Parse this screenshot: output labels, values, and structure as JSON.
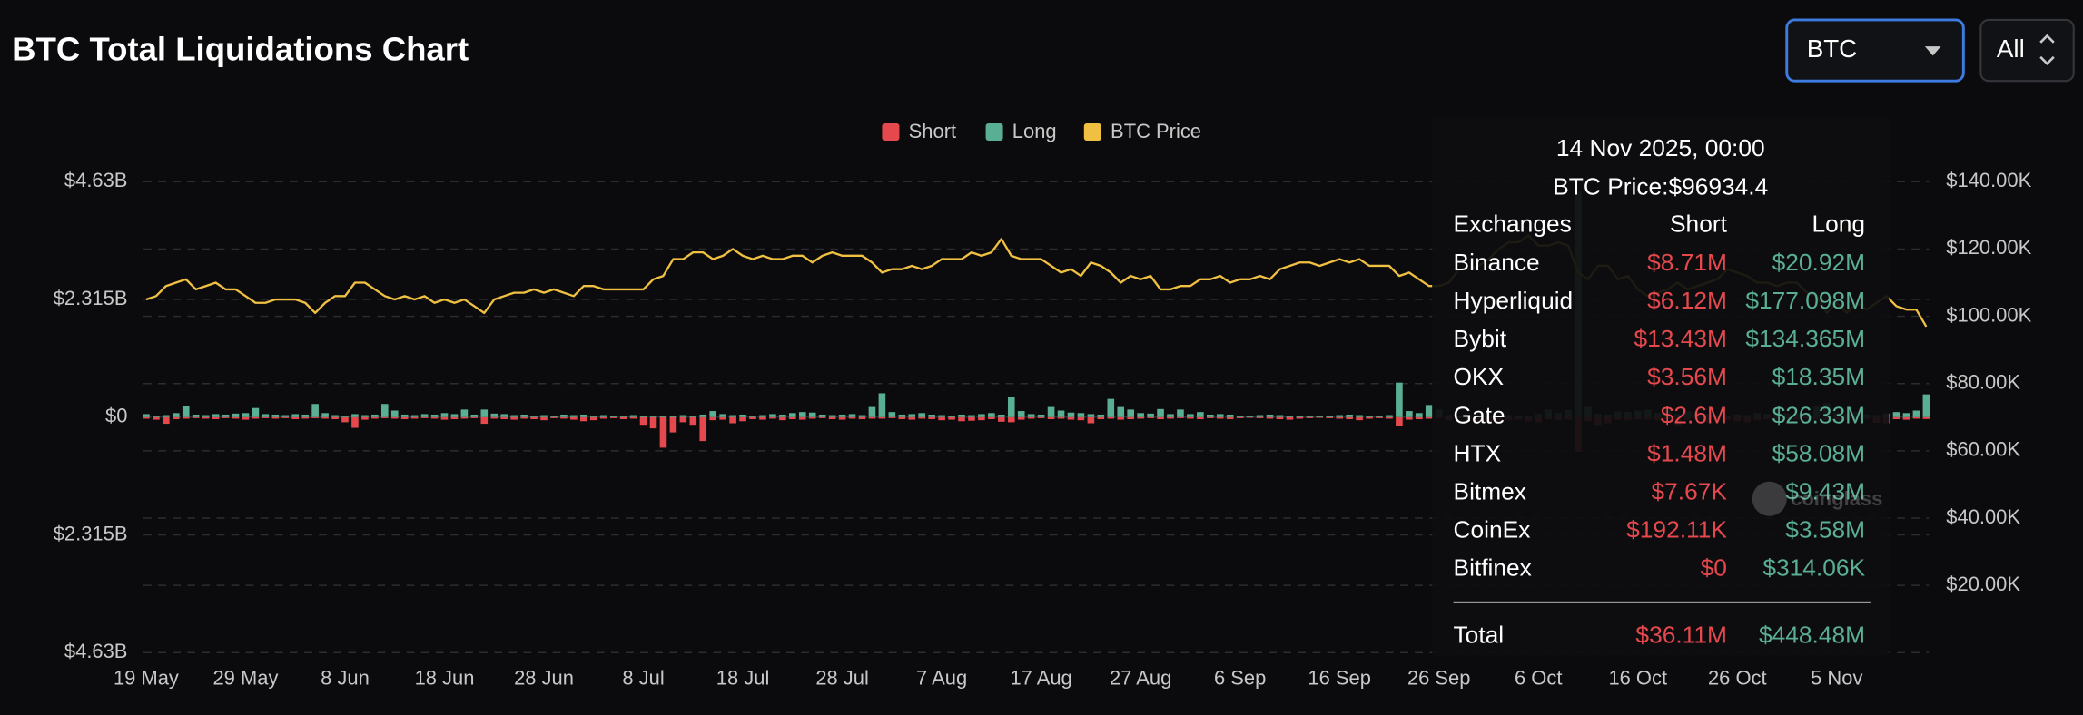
{
  "header": {
    "title": "BTC Total Liquidations Chart",
    "symbol_select": "BTC",
    "range_select": "All"
  },
  "chart_data": {
    "type": "combo",
    "categories": [
      "19 May",
      null,
      null,
      null,
      null,
      null,
      null,
      null,
      null,
      null,
      "29 May",
      null,
      null,
      null,
      null,
      null,
      null,
      null,
      null,
      null,
      "8 Jun",
      null,
      null,
      null,
      null,
      null,
      null,
      null,
      null,
      null,
      "18 Jun",
      null,
      null,
      null,
      null,
      null,
      null,
      null,
      null,
      null,
      "28 Jun",
      null,
      null,
      null,
      null,
      null,
      null,
      null,
      null,
      null,
      "8 Jul",
      null,
      null,
      null,
      null,
      null,
      null,
      null,
      null,
      null,
      "18 Jul",
      null,
      null,
      null,
      null,
      null,
      null,
      null,
      null,
      null,
      "28 Jul",
      null,
      null,
      null,
      null,
      null,
      null,
      null,
      null,
      null,
      "7 Aug",
      null,
      null,
      null,
      null,
      null,
      null,
      null,
      null,
      null,
      "17 Aug",
      null,
      null,
      null,
      null,
      null,
      null,
      null,
      null,
      null,
      "27 Aug",
      null,
      null,
      null,
      null,
      null,
      null,
      null,
      null,
      null,
      "6 Sep",
      null,
      null,
      null,
      null,
      null,
      null,
      null,
      null,
      null,
      "16 Sep",
      null,
      null,
      null,
      null,
      null,
      null,
      null,
      null,
      null,
      "26 Sep",
      null,
      null,
      null,
      null,
      null,
      null,
      null,
      null,
      null,
      "6 Oct",
      null,
      null,
      null,
      null,
      null,
      null,
      null,
      null,
      null,
      "16 Oct",
      null,
      null,
      null,
      null,
      null,
      null,
      null,
      null,
      null,
      "26 Oct",
      null,
      null,
      null,
      null,
      null,
      null,
      null,
      null,
      null,
      "5 Nov",
      null,
      null,
      null,
      null,
      null,
      null,
      null,
      null,
      null
    ],
    "series": [
      {
        "name": "Short",
        "type": "bar",
        "color": "#e5484d",
        "values": [
          -30000000.0,
          -50000000.0,
          -130000000.0,
          -40000000.0,
          -30000000.0,
          -20000000.0,
          -30000000.0,
          -40000000.0,
          -20000000.0,
          -30000000.0,
          -50000000.0,
          -30000000.0,
          -20000000.0,
          -30000000.0,
          -20000000.0,
          -40000000.0,
          -30000000.0,
          -20000000.0,
          -30000000.0,
          -40000000.0,
          -100000000.0,
          -210000000.0,
          -50000000.0,
          -30000000.0,
          -20000000.0,
          -30000000.0,
          -40000000.0,
          -30000000.0,
          -20000000.0,
          -30000000.0,
          -50000000.0,
          -40000000.0,
          -30000000.0,
          -20000000.0,
          -130000000.0,
          -30000000.0,
          -40000000.0,
          -50000000.0,
          -30000000.0,
          -40000000.0,
          -60000000.0,
          -20000000.0,
          -30000000.0,
          -50000000.0,
          -80000000.0,
          -60000000.0,
          -30000000.0,
          -20000000.0,
          -40000000.0,
          -30000000.0,
          -150000000.0,
          -220000000.0,
          -600000000.0,
          -300000000.0,
          -100000000.0,
          -150000000.0,
          -470000000.0,
          -60000000.0,
          -50000000.0,
          -120000000.0,
          -80000000.0,
          -40000000.0,
          -50000000.0,
          -30000000.0,
          -60000000.0,
          -40000000.0,
          -50000000.0,
          -30000000.0,
          -20000000.0,
          -40000000.0,
          -50000000.0,
          -30000000.0,
          -40000000.0,
          -30000000.0,
          -30000000.0,
          -20000000.0,
          -40000000.0,
          -50000000.0,
          -30000000.0,
          -40000000.0,
          -60000000.0,
          -50000000.0,
          -80000000.0,
          -70000000.0,
          -60000000.0,
          -40000000.0,
          -90000000.0,
          -100000000.0,
          -50000000.0,
          -30000000.0,
          -20000000.0,
          -40000000.0,
          -30000000.0,
          -50000000.0,
          -60000000.0,
          -120000000.0,
          -40000000.0,
          -30000000.0,
          -50000000.0,
          -40000000.0,
          -30000000.0,
          -20000000.0,
          -40000000.0,
          -30000000.0,
          -20000000.0,
          -30000000.0,
          -40000000.0,
          -20000000.0,
          -30000000.0,
          -40000000.0,
          -20000000.0,
          -10000000.0,
          -20000000.0,
          -30000000.0,
          -40000000.0,
          -50000000.0,
          -30000000.0,
          -20000000.0,
          -10000000.0,
          -20000000.0,
          -30000000.0,
          -40000000.0,
          -60000000.0,
          -30000000.0,
          -20000000.0,
          -30000000.0,
          -180000000.0,
          -50000000.0,
          -40000000.0,
          -30000000.0,
          -20000000.0,
          -60000000.0,
          -20000000.0,
          -50000000.0,
          -80000000.0,
          -100000000.0,
          -130000000.0,
          -60000000.0,
          -50000000.0,
          -80000000.0,
          -100000000.0,
          -40000000.0,
          -60000000.0,
          -50000000.0,
          -680000000.0,
          -80000000.0,
          -150000000.0,
          -120000000.0,
          -50000000.0,
          -60000000.0,
          -40000000.0,
          -50000000.0,
          -60000000.0,
          -40000000.0,
          -160000000.0,
          -50000000.0,
          -40000000.0,
          -110000000.0,
          -60000000.0,
          -50000000.0,
          -80000000.0,
          -100000000.0,
          -60000000.0,
          -40000000.0,
          -50000000.0,
          -30000000.0,
          -50000000.0,
          -30000000.0,
          -40000000.0,
          -50000000.0,
          -60000000.0,
          -40000000.0,
          -50000000.0,
          -30000000.0,
          -110000000.0,
          -120000000.0,
          -40000000.0,
          -50000000.0,
          -30000000.0,
          -36110000.0
        ]
      },
      {
        "name": "Long",
        "type": "bar",
        "color": "#5aae93",
        "values": [
          60000000.0,
          30000000.0,
          40000000.0,
          80000000.0,
          220000000.0,
          50000000.0,
          40000000.0,
          60000000.0,
          50000000.0,
          70000000.0,
          80000000.0,
          180000000.0,
          60000000.0,
          50000000.0,
          40000000.0,
          60000000.0,
          50000000.0,
          260000000.0,
          80000000.0,
          40000000.0,
          30000000.0,
          60000000.0,
          40000000.0,
          50000000.0,
          260000000.0,
          130000000.0,
          50000000.0,
          40000000.0,
          60000000.0,
          50000000.0,
          80000000.0,
          60000000.0,
          150000000.0,
          50000000.0,
          150000000.0,
          70000000.0,
          60000000.0,
          40000000.0,
          50000000.0,
          30000000.0,
          40000000.0,
          30000000.0,
          50000000.0,
          40000000.0,
          50000000.0,
          30000000.0,
          40000000.0,
          30000000.0,
          20000000.0,
          40000000.0,
          30000000.0,
          20000000.0,
          20000000.0,
          30000000.0,
          40000000.0,
          30000000.0,
          50000000.0,
          120000000.0,
          60000000.0,
          40000000.0,
          50000000.0,
          30000000.0,
          40000000.0,
          60000000.0,
          50000000.0,
          80000000.0,
          100000000.0,
          90000000.0,
          50000000.0,
          40000000.0,
          50000000.0,
          60000000.0,
          40000000.0,
          200000000.0,
          470000000.0,
          100000000.0,
          50000000.0,
          60000000.0,
          80000000.0,
          50000000.0,
          40000000.0,
          30000000.0,
          50000000.0,
          40000000.0,
          60000000.0,
          80000000.0,
          50000000.0,
          390000000.0,
          120000000.0,
          60000000.0,
          50000000.0,
          200000000.0,
          130000000.0,
          90000000.0,
          80000000.0,
          60000000.0,
          50000000.0,
          360000000.0,
          200000000.0,
          150000000.0,
          80000000.0,
          70000000.0,
          160000000.0,
          60000000.0,
          150000000.0,
          60000000.0,
          100000000.0,
          50000000.0,
          60000000.0,
          50000000.0,
          30000000.0,
          20000000.0,
          40000000.0,
          50000000.0,
          40000000.0,
          30000000.0,
          30000000.0,
          20000000.0,
          20000000.0,
          30000000.0,
          40000000.0,
          50000000.0,
          40000000.0,
          30000000.0,
          30000000.0,
          40000000.0,
          680000000.0,
          120000000.0,
          80000000.0,
          240000000.0,
          150000000.0,
          40000000.0,
          30000000.0,
          50000000.0,
          60000000.0,
          30000000.0,
          50000000.0,
          40000000.0,
          30000000.0,
          20000000.0,
          60000000.0,
          150000000.0,
          80000000.0,
          140000000.0,
          4450000000.0,
          200000000.0,
          60000000.0,
          50000000.0,
          110000000.0,
          100000000.0,
          130000000.0,
          150000000.0,
          80000000.0,
          150000000.0,
          60000000.0,
          110000000.0,
          100000000.0,
          60000000.0,
          40000000.0,
          30000000.0,
          50000000.0,
          40000000.0,
          80000000.0,
          60000000.0,
          180000000.0,
          70000000.0,
          60000000.0,
          80000000.0,
          210000000.0,
          270000000.0,
          90000000.0,
          60000000.0,
          100000000.0,
          50000000.0,
          40000000.0,
          70000000.0,
          100000000.0,
          80000000.0,
          130000000.0,
          448480000.0
        ]
      },
      {
        "name": "BTC Price",
        "type": "line",
        "axis": "y2",
        "color": "#f0c043",
        "values": [
          105000.0,
          106000.0,
          109000.0,
          110000.0,
          111000.0,
          108000.0,
          109000.0,
          110000.0,
          108000.0,
          108000.0,
          106000.0,
          104000.0,
          104000.0,
          105000.0,
          105000.0,
          105000.0,
          104000.0,
          101000.0,
          104000.0,
          106000.0,
          106000.0,
          110000.0,
          110000.0,
          108000.0,
          106000.0,
          105000.0,
          106000.0,
          105000.0,
          106000.0,
          104000.0,
          105000.0,
          104000.0,
          105000.0,
          103000.0,
          101000.0,
          105000.0,
          106000.0,
          107000.0,
          107000.0,
          108000.0,
          107000.0,
          108000.0,
          107000.0,
          106000.0,
          109000.0,
          109000.0,
          108000.0,
          108000.0,
          108000.0,
          108000.0,
          108000.0,
          111000.0,
          112000.0,
          117000.0,
          117000.0,
          119000.0,
          119000.0,
          117000.0,
          118000.0,
          120000.0,
          118000.0,
          117000.0,
          118000.0,
          117000.0,
          117000.0,
          118000.0,
          118000.0,
          116000.0,
          118000.0,
          119000.0,
          118000.0,
          118000.0,
          118000.0,
          116000.0,
          113000.0,
          114000.0,
          114000.0,
          115000.0,
          114000.0,
          115000.0,
          117000.0,
          117000.0,
          117000.0,
          119000.0,
          118000.0,
          119000.0,
          123000.0,
          118000.0,
          117000.0,
          117000.0,
          117000.0,
          115000.0,
          113000.0,
          114000.0,
          112000.0,
          116000.0,
          115000.0,
          113000.0,
          110000.0,
          112000.0,
          111000.0,
          112000.0,
          108000.0,
          108000.0,
          109000.0,
          109000.0,
          111000.0,
          111000.0,
          112000.0,
          110000.0,
          111000.0,
          111000.0,
          112000.0,
          111000.0,
          114000.0,
          115000.0,
          116000.0,
          116000.0,
          115000.0,
          116000.0,
          117000.0,
          116000.0,
          117000.0,
          115000.0,
          115000.0,
          115000.0,
          112000.0,
          113000.0,
          111000.0,
          109000.0,
          109000.0,
          110000.0,
          114000.0,
          114000.0,
          115000.0,
          117000.0,
          120000.0,
          122000.0,
          122000.0,
          124000.0,
          121000.0,
          121000.0,
          122000.0,
          121000.0,
          113000.0,
          111000.0,
          115000.0,
          115000.0,
          111000.0,
          112000.0,
          108000.0,
          106000.0,
          107000.0,
          108000.0,
          110000.0,
          108000.0,
          109000.0,
          110000.0,
          111000.0,
          114000.0,
          113000.0,
          112000.0,
          110000.0,
          110000.0,
          109000.0,
          110000.0,
          110000.0,
          107000.0,
          106000.0,
          101000.0,
          104000.0,
          101000.0,
          104000.0,
          102000.0,
          104000.0,
          106000.0,
          103000.0,
          102000.0,
          102000.0,
          96934.4
        ]
      }
    ],
    "ylim": [
      -4630000000,
      4630000000
    ],
    "yticks": [
      {
        "value": -4630000000,
        "label": "$4.63B"
      },
      {
        "value": -2315000000,
        "label": "$2.315B"
      },
      {
        "value": 0,
        "label": "$0"
      },
      {
        "value": 2315000000,
        "label": "$2.315B"
      },
      {
        "value": 4630000000,
        "label": "$4.63B"
      }
    ],
    "y2lim": [
      0,
      140000
    ],
    "y2ticks": [
      {
        "value": 20000,
        "label": "$20.00K"
      },
      {
        "value": 40000,
        "label": "$40.00K"
      },
      {
        "value": 60000,
        "label": "$60.00K"
      },
      {
        "value": 80000,
        "label": "$80.00K"
      },
      {
        "value": 100000,
        "label": "$100.00K"
      },
      {
        "value": 120000,
        "label": "$120.00K"
      },
      {
        "value": 140000,
        "label": "$140.00K"
      }
    ],
    "grid": true,
    "legend": "top"
  },
  "tooltip": {
    "title": "14 Nov 2025, 00:00",
    "price": "BTC Price:$96934.4",
    "columns": [
      "Exchanges",
      "Short",
      "Long"
    ],
    "rows": [
      [
        "Binance",
        "$8.71M",
        "$20.92M"
      ],
      [
        "Hyperliquid",
        "$6.12M",
        "$177.098M"
      ],
      [
        "Bybit",
        "$13.43M",
        "$134.365M"
      ],
      [
        "OKX",
        "$3.56M",
        "$18.35M"
      ],
      [
        "Gate",
        "$2.6M",
        "$26.33M"
      ],
      [
        "HTX",
        "$1.48M",
        "$58.08M"
      ],
      [
        "Bitmex",
        "$7.67K",
        "$9.43M"
      ],
      [
        "CoinEx",
        "$192.11K",
        "$3.58M"
      ],
      [
        "Bitfinex",
        "$0",
        "$314.06K"
      ]
    ],
    "total": [
      "Total",
      "$36.11M",
      "$448.48M"
    ]
  },
  "watermark": "coinglass"
}
